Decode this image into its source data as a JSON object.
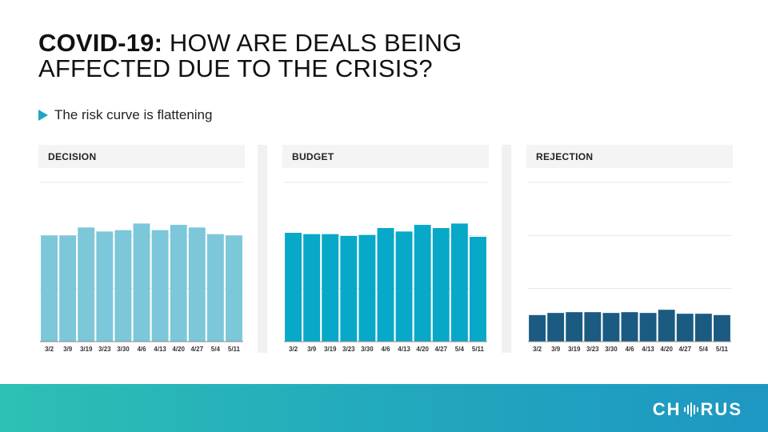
{
  "slide": {
    "title_bold": "COVID-19:",
    "title_rest": " HOW ARE DEALS BEING AFFECTED DUE TO THE CRISIS?",
    "bullet": "The risk curve is flattening"
  },
  "footer": {
    "logo_left": "CH",
    "logo_right": "RUS"
  },
  "colors": {
    "accent": "#20a6c4",
    "decision": "#7cc7d9",
    "budget": "#07a8c8",
    "rejection": "#1b5b82"
  },
  "chart_data": [
    {
      "type": "bar",
      "title": "DECISION",
      "color": "#7cc7d9",
      "categories": [
        "3/2",
        "3/9",
        "3/19",
        "3/23",
        "3/30",
        "4/6",
        "4/13",
        "4/20",
        "4/27",
        "5/4",
        "5/11"
      ],
      "values": [
        40,
        40,
        43,
        41.5,
        42,
        44.5,
        42,
        44,
        43,
        40.5,
        40
      ],
      "ylim": [
        0,
        60
      ],
      "grid": true
    },
    {
      "type": "bar",
      "title": "BUDGET",
      "color": "#07a8c8",
      "categories": [
        "3/2",
        "3/9",
        "3/19",
        "3/23",
        "3/30",
        "4/6",
        "4/13",
        "4/20",
        "4/27",
        "5/4",
        "5/11"
      ],
      "values": [
        41,
        40.5,
        40.5,
        39.8,
        40.2,
        42.8,
        41.5,
        44,
        42.8,
        44.5,
        39.5
      ],
      "ylim": [
        0,
        60
      ],
      "grid": true
    },
    {
      "type": "bar",
      "title": "REJECTION",
      "color": "#1b5b82",
      "categories": [
        "3/2",
        "3/9",
        "3/19",
        "3/23",
        "3/30",
        "4/6",
        "4/13",
        "4/20",
        "4/27",
        "5/4",
        "5/11"
      ],
      "values": [
        10,
        10.8,
        11.1,
        11.1,
        10.8,
        11.1,
        10.8,
        12,
        10.5,
        10.5,
        10
      ],
      "ylim": [
        0,
        60
      ],
      "grid": true
    }
  ]
}
